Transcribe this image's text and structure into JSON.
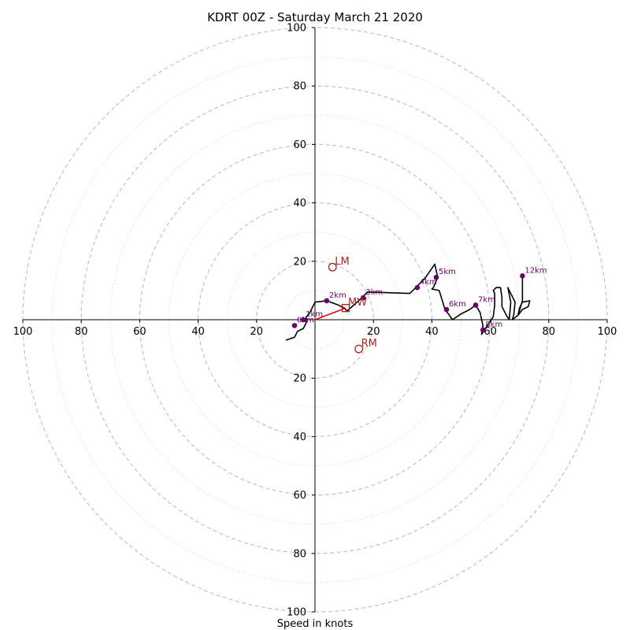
{
  "chart_data": {
    "type": "scatter",
    "title": "KDRT 00Z - Saturday March 21 2020",
    "xlabel": "Speed in knots",
    "ylabel": "",
    "xlim": [
      -100,
      100
    ],
    "ylim": [
      -100,
      100
    ],
    "major_rings": [
      20,
      40,
      60,
      80,
      100
    ],
    "minor_rings": [
      10,
      30,
      50,
      70,
      90
    ],
    "tick_labels": {
      "x": [
        {
          "value": -100,
          "label": "100"
        },
        {
          "value": -80,
          "label": "80"
        },
        {
          "value": -60,
          "label": "60"
        },
        {
          "value": -40,
          "label": "40"
        },
        {
          "value": -20,
          "label": "20"
        },
        {
          "value": 20,
          "label": "20"
        },
        {
          "value": 40,
          "label": "40"
        },
        {
          "value": 60,
          "label": "60"
        },
        {
          "value": 80,
          "label": "80"
        },
        {
          "value": 100,
          "label": "100"
        }
      ],
      "y": [
        {
          "value": 100,
          "label": "100"
        },
        {
          "value": 80,
          "label": "80"
        },
        {
          "value": 60,
          "label": "60"
        },
        {
          "value": 40,
          "label": "40"
        },
        {
          "value": 20,
          "label": "20"
        },
        {
          "value": -20,
          "label": "20"
        },
        {
          "value": -40,
          "label": "40"
        },
        {
          "value": -60,
          "label": "60"
        },
        {
          "value": -80,
          "label": "80"
        },
        {
          "value": -100,
          "label": "100"
        }
      ]
    },
    "grid": true,
    "series": [
      {
        "values": [
          [
            -10,
            -7
          ],
          [
            -7,
            -6
          ],
          [
            -6,
            -4
          ],
          [
            -4,
            -3
          ],
          [
            -3,
            -1
          ],
          [
            -3,
            1
          ],
          [
            -2,
            2
          ],
          [
            0,
            6
          ],
          [
            4,
            6.5
          ],
          [
            8,
            5
          ],
          [
            10,
            4
          ],
          [
            11,
            3
          ],
          [
            16,
            7.5
          ],
          [
            18,
            9.5
          ],
          [
            32.5,
            9
          ],
          [
            34.5,
            11
          ],
          [
            37.5,
            14
          ],
          [
            41,
            19
          ],
          [
            42,
            14.5
          ],
          [
            40.5,
            11
          ],
          [
            40,
            10.5
          ],
          [
            42.5,
            10
          ],
          [
            44.5,
            3.5
          ],
          [
            46,
            1.5
          ],
          [
            47,
            0
          ],
          [
            50,
            2
          ],
          [
            53,
            3.5
          ],
          [
            55,
            5
          ],
          [
            56.5,
            2.5
          ],
          [
            57.5,
            -2
          ],
          [
            57,
            -5
          ],
          [
            58,
            -3.5
          ],
          [
            61,
            1
          ],
          [
            61.5,
            5
          ],
          [
            61.5,
            9
          ],
          [
            61,
            10
          ],
          [
            62,
            11
          ],
          [
            63.5,
            11
          ],
          [
            64,
            7.5
          ],
          [
            64,
            4.5
          ],
          [
            65.5,
            1.5
          ],
          [
            66.5,
            0
          ],
          [
            67,
            6
          ],
          [
            66,
            11
          ],
          [
            68.5,
            6
          ],
          [
            68,
            1.5
          ],
          [
            67.5,
            0
          ],
          [
            69.5,
            1.5
          ],
          [
            70,
            4
          ],
          [
            71,
            6
          ],
          [
            73.5,
            6.5
          ],
          [
            73,
            4.5
          ],
          [
            71,
            3.5
          ],
          [
            69.5,
            1.5
          ],
          [
            71,
            6.5
          ],
          [
            71,
            15
          ]
        ]
      }
    ],
    "height_markers": [
      {
        "label": "1km",
        "x": -4,
        "y": 0
      },
      {
        "label": "0km",
        "x": -7,
        "y": -2
      },
      {
        "label": "2km",
        "x": 4,
        "y": 6.5
      },
      {
        "label": "3km",
        "x": 16.5,
        "y": 7.5
      },
      {
        "label": "4km",
        "x": 35,
        "y": 11
      },
      {
        "label": "5km",
        "x": 41.5,
        "y": 14.5
      },
      {
        "label": "6km",
        "x": 45,
        "y": 3.5
      },
      {
        "label": "7km",
        "x": 55,
        "y": 5
      },
      {
        "label": "8km",
        "x": 57.5,
        "y": -3.5
      },
      {
        "label": "12km",
        "x": 71,
        "y": 15
      }
    ],
    "storm_motion": [
      {
        "label": "LM",
        "x": 6,
        "y": 18,
        "marker": "circle"
      },
      {
        "label": "RM",
        "x": 15,
        "y": -10,
        "marker": "circle"
      },
      {
        "label": "MW",
        "x": 10.5,
        "y": 4,
        "marker": "square"
      }
    ],
    "colors": {
      "hodograph": "#000000",
      "height_markers": "#6a006a",
      "storm_motion": "#b22222",
      "mean_wind_vector": "#e00000",
      "grid": "#bdbdbd"
    }
  }
}
